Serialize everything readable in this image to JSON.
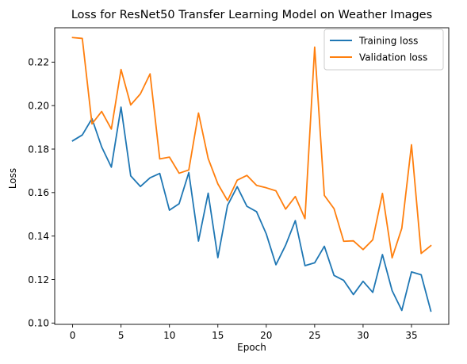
{
  "chart_data": {
    "type": "line",
    "title": "Loss for ResNet50 Transfer Learning Model on Weather Images",
    "xlabel": "Epoch",
    "ylabel": "Loss",
    "xlim": [
      -1.85,
      38.85
    ],
    "ylim": [
      0.0994,
      0.2358
    ],
    "xticks": [
      0,
      5,
      10,
      15,
      20,
      25,
      30,
      35
    ],
    "yticks": [
      0.1,
      0.12,
      0.14,
      0.16,
      0.18,
      0.2,
      0.22
    ],
    "ytick_labels": [
      "0.10",
      "0.12",
      "0.14",
      "0.16",
      "0.18",
      "0.20",
      "0.22"
    ],
    "xtick_labels": [
      "0",
      "5",
      "10",
      "15",
      "20",
      "25",
      "30",
      "35"
    ],
    "grid": false,
    "legend_position": "top-right",
    "x": [
      0,
      1,
      2,
      3,
      4,
      5,
      6,
      7,
      8,
      9,
      10,
      11,
      12,
      13,
      14,
      15,
      16,
      17,
      18,
      19,
      20,
      21,
      22,
      23,
      24,
      25,
      26,
      27,
      28,
      29,
      30,
      31,
      32,
      33,
      34,
      35,
      36,
      37
    ],
    "series": [
      {
        "name": "Training loss",
        "color": "#1f77b4",
        "values": [
          0.1838,
          0.1865,
          0.194,
          0.181,
          0.1717,
          0.1993,
          0.1677,
          0.1628,
          0.1668,
          0.1688,
          0.1519,
          0.1549,
          0.1692,
          0.1377,
          0.1597,
          0.1301,
          0.1541,
          0.1627,
          0.1537,
          0.1512,
          0.141,
          0.1268,
          0.1358,
          0.1471,
          0.1264,
          0.1277,
          0.1353,
          0.1219,
          0.1196,
          0.1131,
          0.1192,
          0.1141,
          0.1315,
          0.1149,
          0.1058,
          0.1235,
          0.1222,
          0.1055
        ]
      },
      {
        "name": "Validation loss",
        "color": "#ff7f0e",
        "values": [
          0.2313,
          0.2309,
          0.1916,
          0.1973,
          0.1892,
          0.2166,
          0.2003,
          0.2054,
          0.2146,
          0.1755,
          0.1763,
          0.1689,
          0.1704,
          0.1966,
          0.1757,
          0.164,
          0.1563,
          0.1657,
          0.1679,
          0.1633,
          0.1622,
          0.1608,
          0.1524,
          0.1582,
          0.148,
          0.2269,
          0.1587,
          0.1526,
          0.1376,
          0.1378,
          0.1338,
          0.1383,
          0.1596,
          0.13,
          0.1436,
          0.182,
          0.132,
          0.1356
        ]
      }
    ]
  }
}
